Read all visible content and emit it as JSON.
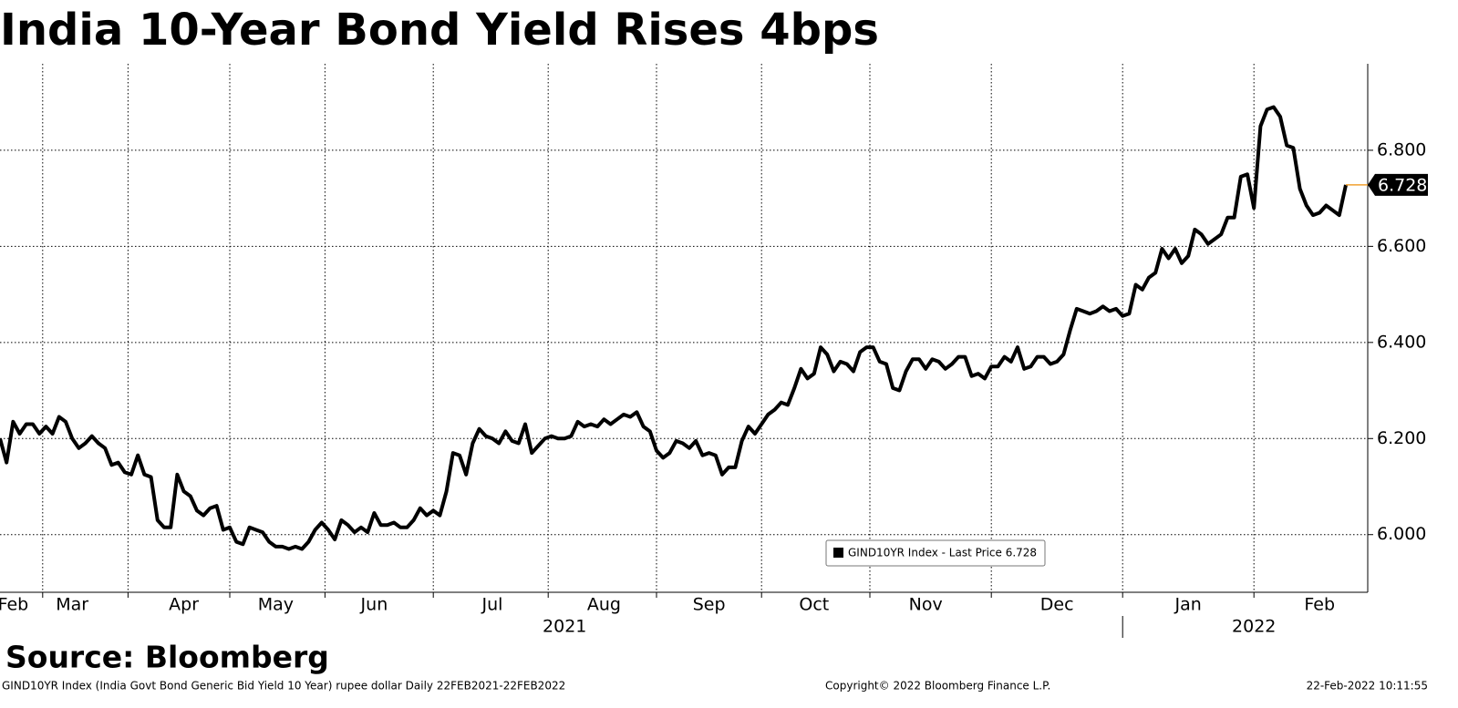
{
  "chart_data": {
    "type": "line",
    "title": "India 10-Year Bond Yield Rises 4bps",
    "source": "Source: Bloomberg",
    "footnote": "GIND10YR Index (India Govt Bond Generic Bid Yield 10 Year) rupee dollar  Daily 22FEB2021-22FEB2022",
    "copyright": "Copyright© 2022 Bloomberg Finance L.P.",
    "timestamp": "22-Feb-2022 10:11:55",
    "legend": "GIND10YR Index - Last Price 6.728",
    "color": "#000000",
    "grid": true,
    "ylim": [
      5.88,
      6.98
    ],
    "yticks": [
      {
        "value": 6.0,
        "label": "6.000"
      },
      {
        "value": 6.2,
        "label": "6.200"
      },
      {
        "value": 6.4,
        "label": "6.400"
      },
      {
        "value": 6.6,
        "label": "6.600"
      },
      {
        "value": 6.8,
        "label": "6.800"
      }
    ],
    "categories": [
      null,
      null,
      "Feb",
      null,
      null,
      null,
      null,
      null,
      null,
      null,
      null,
      "Mar",
      null,
      null,
      null,
      null,
      null,
      null,
      null,
      null,
      null,
      null,
      null,
      null,
      null,
      null,
      null,
      null,
      "Apr",
      null,
      null,
      null,
      null,
      null,
      null,
      null,
      null,
      null,
      null,
      null,
      null,
      null,
      "May",
      null,
      null,
      null,
      null,
      null,
      null,
      null,
      null,
      null,
      null,
      null,
      null,
      null,
      null,
      "Jun",
      null,
      null,
      null,
      null,
      null,
      null,
      null,
      null,
      null,
      null,
      null,
      null,
      null,
      null,
      null,
      null,
      null,
      "Jul",
      null,
      null,
      null,
      null,
      null,
      null,
      null,
      null,
      null,
      null,
      null,
      null,
      null,
      null,
      null,
      null,
      "Aug",
      null,
      null,
      null,
      null,
      null,
      null,
      null,
      null,
      null,
      null,
      null,
      null,
      null,
      null,
      null,
      "Sep",
      null,
      null,
      null,
      null,
      null,
      null,
      null,
      null,
      null,
      null,
      null,
      null,
      null,
      null,
      null,
      "Oct",
      null,
      null,
      null,
      null,
      null,
      null,
      null,
      null,
      null,
      null,
      null,
      null,
      null,
      null,
      null,
      null,
      "Nov",
      null,
      null,
      null,
      null,
      null,
      null,
      null,
      null,
      null,
      null,
      null,
      null,
      null,
      null,
      null,
      null,
      null,
      null,
      null,
      "Dec",
      null,
      null,
      null,
      null,
      null,
      null,
      null,
      null,
      null,
      null,
      null,
      null,
      null,
      null,
      null,
      null,
      null,
      null,
      null,
      "Jan",
      null,
      null,
      null,
      null,
      null,
      null,
      null,
      null,
      null,
      null,
      null,
      null,
      null,
      null,
      null,
      null,
      null,
      null,
      null,
      "Feb",
      null,
      null,
      null,
      null
    ],
    "category_groups": [
      null,
      null,
      null,
      null,
      null,
      null,
      null,
      null,
      null,
      null,
      null,
      null,
      null,
      null,
      null,
      null,
      null,
      null,
      null,
      null,
      null,
      null,
      null,
      null,
      null,
      null,
      null,
      null,
      null,
      null,
      null,
      null,
      null,
      null,
      null,
      null,
      null,
      null,
      null,
      null,
      null,
      null,
      null,
      null,
      null,
      null,
      null,
      null,
      null,
      null,
      null,
      null,
      null,
      null,
      null,
      null,
      null,
      null,
      null,
      null,
      null,
      null,
      null,
      null,
      null,
      null,
      null,
      null,
      null,
      null,
      null,
      null,
      null,
      null,
      null,
      null,
      null,
      null,
      null,
      null,
      null,
      null,
      null,
      null,
      null,
      null,
      "2021",
      null,
      null,
      null,
      null,
      null,
      null,
      null,
      null,
      null,
      null,
      null,
      null,
      null,
      null,
      null,
      null,
      null,
      null,
      null,
      null,
      null,
      null,
      null,
      null,
      null,
      null,
      null,
      null,
      null,
      null,
      null,
      null,
      null,
      null,
      null,
      null,
      null,
      null,
      null,
      null,
      null,
      null,
      null,
      null,
      null,
      null,
      null,
      null,
      null,
      null,
      null,
      null,
      null,
      null,
      null,
      null,
      null,
      null,
      null,
      null,
      null,
      null,
      null,
      null,
      null,
      null,
      null,
      null,
      null,
      null,
      null,
      null,
      null,
      null,
      null,
      null,
      null,
      null,
      null,
      null,
      null,
      null,
      null,
      null,
      null,
      null,
      null,
      null,
      null,
      null,
      null,
      null,
      null,
      null,
      null,
      null,
      null,
      null,
      null,
      null,
      null,
      null,
      null,
      null,
      "2022",
      null,
      null,
      null,
      null,
      null,
      null,
      null,
      null,
      null,
      null,
      null,
      null,
      null,
      null
    ],
    "values": [
      6.2,
      6.15,
      6.235,
      6.21,
      6.23,
      6.23,
      6.21,
      6.225,
      6.21,
      6.245,
      6.235,
      6.2,
      6.18,
      6.19,
      6.205,
      6.19,
      6.18,
      6.145,
      6.15,
      6.13,
      6.125,
      6.165,
      6.125,
      6.12,
      6.03,
      6.015,
      6.015,
      6.125,
      6.09,
      6.08,
      6.05,
      6.04,
      6.055,
      6.06,
      6.01,
      6.015,
      5.985,
      5.98,
      6.015,
      6.01,
      6.005,
      5.985,
      5.975,
      5.975,
      5.97,
      5.975,
      5.97,
      5.985,
      6.01,
      6.025,
      6.01,
      5.99,
      6.03,
      6.02,
      6.005,
      6.015,
      6.005,
      6.045,
      6.02,
      6.02,
      6.025,
      6.015,
      6.015,
      6.03,
      6.055,
      6.04,
      6.05,
      6.04,
      6.09,
      6.17,
      6.165,
      6.125,
      6.19,
      6.22,
      6.205,
      6.2,
      6.19,
      6.215,
      6.195,
      6.19,
      6.23,
      6.17,
      6.185,
      6.2,
      6.205,
      6.2,
      6.2,
      6.205,
      6.235,
      6.225,
      6.23,
      6.225,
      6.24,
      6.23,
      6.24,
      6.25,
      6.245,
      6.255,
      6.225,
      6.215,
      6.175,
      6.16,
      6.17,
      6.195,
      6.19,
      6.18,
      6.195,
      6.165,
      6.17,
      6.165,
      6.125,
      6.14,
      6.14,
      6.195,
      6.225,
      6.21,
      6.23,
      6.25,
      6.26,
      6.275,
      6.27,
      6.305,
      6.345,
      6.325,
      6.335,
      6.39,
      6.375,
      6.34,
      6.36,
      6.355,
      6.34,
      6.38,
      6.39,
      6.39,
      6.36,
      6.355,
      6.305,
      6.3,
      6.34,
      6.365,
      6.365,
      6.345,
      6.365,
      6.36,
      6.345,
      6.355,
      6.37,
      6.37,
      6.33,
      6.335,
      6.325,
      6.35,
      6.35,
      6.37,
      6.36,
      6.39,
      6.345,
      6.35,
      6.37,
      6.37,
      6.355,
      6.36,
      6.375,
      6.425,
      6.47,
      6.465,
      6.46,
      6.465,
      6.475,
      6.465,
      6.47,
      6.455,
      6.46,
      6.52,
      6.51,
      6.535,
      6.545,
      6.595,
      6.575,
      6.595,
      6.565,
      6.58,
      6.635,
      6.625,
      6.605,
      6.615,
      6.625,
      6.66,
      6.66,
      6.745,
      6.75,
      6.68,
      6.85,
      6.885,
      6.89,
      6.87,
      6.81,
      6.805,
      6.72,
      6.685,
      6.665,
      6.67,
      6.685,
      6.675,
      6.665,
      6.728
    ]
  }
}
